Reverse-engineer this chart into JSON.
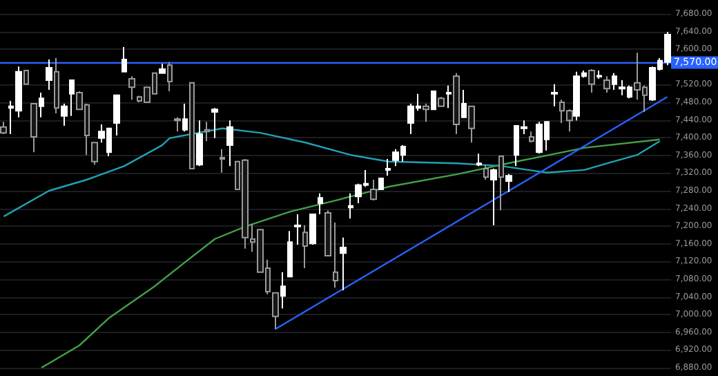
{
  "chart_data": {
    "type": "candlestick",
    "tick_labels": "y",
    "grid": "y",
    "ylim": [
      6880,
      7680
    ],
    "yticks": [
      {
        "value": 6880,
        "label": "6,880.00"
      },
      {
        "value": 6920,
        "label": "6,920.00"
      },
      {
        "value": 6960,
        "label": "6,960.00"
      },
      {
        "value": 7000,
        "label": "7,000.00"
      },
      {
        "value": 7040,
        "label": "7,040.00"
      },
      {
        "value": 7080,
        "label": "7,080.00"
      },
      {
        "value": 7120,
        "label": "7,120.00"
      },
      {
        "value": 7160,
        "label": "7,160.00"
      },
      {
        "value": 7200,
        "label": "7,200.00"
      },
      {
        "value": 7240,
        "label": "7,240.00"
      },
      {
        "value": 7280,
        "label": "7,280.00"
      },
      {
        "value": 7320,
        "label": "7,320.00"
      },
      {
        "value": 7360,
        "label": "7,360.00"
      },
      {
        "value": 7400,
        "label": "7,400.00"
      },
      {
        "value": 7440,
        "label": "7,440.00"
      },
      {
        "value": 7480,
        "label": "7,480.00"
      },
      {
        "value": 7520,
        "label": "7,520.00"
      },
      {
        "value": 7600,
        "label": "7,600.00"
      },
      {
        "value": 7640,
        "label": "7,640.00"
      },
      {
        "value": 7680,
        "label": "7,680.00"
      }
    ],
    "categories": [
      null,
      null,
      null,
      null,
      null,
      null,
      null,
      null,
      null,
      null,
      null,
      null,
      null,
      null,
      null,
      null,
      null,
      null,
      null,
      null,
      null,
      null,
      null,
      null,
      null,
      null,
      null,
      null,
      null,
      null,
      null,
      null,
      null,
      null,
      null,
      null,
      null,
      null,
      null,
      null,
      null,
      null,
      null,
      null,
      null,
      null,
      null,
      null,
      null,
      null,
      null,
      null,
      null,
      null,
      null,
      null,
      null,
      null,
      null,
      null,
      null,
      null,
      null,
      null,
      null,
      null,
      null,
      null,
      null,
      null,
      null,
      null,
      null,
      null,
      null,
      null,
      null,
      null,
      null,
      null,
      null,
      null,
      null,
      null,
      null,
      null,
      null,
      null,
      null
    ],
    "ohlc": [
      [
        7424,
        7436,
        7408,
        7411
      ],
      [
        7467,
        7483,
        7408,
        7471
      ],
      [
        7461,
        7561,
        7446,
        7549
      ],
      [
        7552,
        7552,
        7521,
        7521
      ],
      [
        7477,
        7477,
        7367,
        7402
      ],
      [
        7471,
        7502,
        7446,
        7489
      ],
      [
        7530,
        7577,
        7508,
        7558
      ],
      [
        7549,
        7580,
        7455,
        7467
      ],
      [
        7449,
        7477,
        7427,
        7471
      ],
      [
        7499,
        7530,
        7449,
        7530
      ],
      [
        7502,
        7505,
        7464,
        7464
      ],
      [
        7474,
        7477,
        7361,
        7405
      ],
      [
        7389,
        7389,
        7339,
        7346
      ],
      [
        7399,
        7430,
        7389,
        7414
      ],
      [
        7367,
        7421,
        7358,
        7421
      ],
      [
        7433,
        7496,
        7405,
        7496
      ],
      [
        7549,
        7605,
        7549,
        7577
      ],
      [
        7533,
        7539,
        7486,
        7514
      ],
      [
        7492,
        7495,
        7480,
        7483
      ],
      [
        7514,
        7514,
        7480,
        7480
      ],
      [
        7546,
        7546,
        7499,
        7499
      ],
      [
        7546,
        7567,
        7546,
        7555
      ],
      [
        7564,
        7571,
        7505,
        7527
      ],
      [
        7442,
        7446,
        7414,
        7439
      ],
      [
        7418,
        7477,
        7414,
        7442
      ],
      [
        7524,
        7524,
        7330,
        7330
      ],
      [
        7339,
        7439,
        7336,
        7408
      ],
      [
        7418,
        7436,
        7392,
        7414
      ],
      [
        7458,
        7467,
        7399,
        7464
      ],
      [
        7355,
        7374,
        7321,
        7352
      ],
      [
        7383,
        7439,
        7336,
        7424
      ],
      [
        7346,
        7346,
        7283,
        7283
      ],
      [
        7349,
        7352,
        7149,
        7174
      ],
      [
        7171,
        7205,
        7142,
        7164
      ],
      [
        7192,
        7192,
        7096,
        7096
      ],
      [
        7105,
        7124,
        7046,
        7052
      ],
      [
        7049,
        7049,
        6967,
        6996
      ],
      [
        7042,
        7096,
        7014,
        7064
      ],
      [
        7086,
        7189,
        7086,
        7164
      ],
      [
        7199,
        7227,
        7158,
        7202
      ],
      [
        7186,
        7202,
        7105,
        7155
      ],
      [
        7161,
        7227,
        7158,
        7227
      ],
      [
        7252,
        7274,
        7227,
        7264
      ],
      [
        7230,
        7236,
        7133,
        7133
      ],
      [
        7096,
        7208,
        7061,
        7077
      ],
      [
        7139,
        7174,
        7055,
        7152
      ],
      [
        7242,
        7274,
        7217,
        7246
      ],
      [
        7267,
        7296,
        7252,
        7293
      ],
      [
        7293,
        7327,
        7289,
        7296
      ],
      [
        7283,
        7305,
        7258,
        7261
      ],
      [
        7283,
        7308,
        7283,
        7308
      ],
      [
        7327,
        7352,
        7314,
        7330
      ],
      [
        7349,
        7374,
        7336,
        7367
      ],
      [
        7361,
        7383,
        7346,
        7380
      ],
      [
        7433,
        7477,
        7408,
        7471
      ],
      [
        7467,
        7499,
        7461,
        7471
      ],
      [
        7471,
        7477,
        7436,
        7464
      ],
      [
        7464,
        7505,
        7464,
        7505
      ],
      [
        7489,
        7492,
        7471,
        7471
      ],
      [
        7499,
        7518,
        7467,
        7502
      ],
      [
        7539,
        7546,
        7408,
        7430
      ],
      [
        7446,
        7508,
        7446,
        7477
      ],
      [
        7471,
        7471,
        7389,
        7421
      ],
      [
        7339,
        7364,
        7336,
        7342
      ],
      [
        7330,
        7339,
        7305,
        7311
      ],
      [
        7305,
        7330,
        7202,
        7327
      ],
      [
        7358,
        7358,
        7236,
        7311
      ],
      [
        7302,
        7318,
        7277,
        7314
      ],
      [
        7361,
        7427,
        7336,
        7427
      ],
      [
        7421,
        7439,
        7408,
        7424
      ],
      [
        7402,
        7414,
        7389,
        7392
      ],
      [
        7367,
        7436,
        7364,
        7430
      ],
      [
        7396,
        7436,
        7371,
        7436
      ],
      [
        7499,
        7521,
        7471,
        7502
      ],
      [
        7480,
        7486,
        7433,
        7461
      ],
      [
        7461,
        7464,
        7414,
        7439
      ],
      [
        7449,
        7549,
        7439,
        7539
      ],
      [
        7539,
        7552,
        7536,
        7546
      ],
      [
        7552,
        7555,
        7502,
        7521
      ],
      [
        7538,
        7552,
        7533,
        7540
      ],
      [
        7530,
        7539,
        7502,
        7511
      ],
      [
        7521,
        7546,
        7508,
        7539
      ],
      [
        7511,
        7530,
        7496,
        7514
      ],
      [
        7492,
        7518,
        7489,
        7514
      ],
      [
        7524,
        7592,
        7486,
        7508
      ],
      [
        7514,
        7518,
        7458,
        7496
      ],
      [
        7486,
        7561,
        7483,
        7558
      ],
      [
        7555,
        7580,
        7552,
        7574
      ],
      [
        7571,
        7639,
        7564,
        7633
      ]
    ],
    "series": [
      {
        "type": "line",
        "color": "#1fa2b3",
        "values": [
          7222,
          null,
          null,
          null,
          null,
          null,
          7280,
          null,
          null,
          null,
          null,
          7305,
          null,
          null,
          null,
          null,
          7336,
          null,
          null,
          null,
          null,
          7383,
          7399,
          null,
          null,
          null,
          null,
          null,
          null,
          7421,
          null,
          null,
          null,
          null,
          7411,
          null,
          null,
          null,
          null,
          null,
          7389,
          null,
          null,
          null,
          null,
          null,
          7361,
          null,
          null,
          null,
          null,
          7346,
          null,
          null,
          null,
          null,
          null,
          null,
          null,
          null,
          7342,
          null,
          null,
          null,
          null,
          null,
          7336,
          null,
          null,
          null,
          null,
          null,
          7321,
          null,
          null,
          null,
          null,
          7327,
          null,
          null,
          7342,
          null,
          null,
          null,
          7361,
          null,
          null,
          7392,
          null
        ]
      },
      {
        "type": "line",
        "color": "#43a047",
        "values": [
          null,
          null,
          null,
          null,
          null,
          6880,
          null,
          null,
          null,
          null,
          6930,
          null,
          null,
          null,
          6993,
          null,
          null,
          null,
          null,
          null,
          7064,
          null,
          null,
          null,
          7118,
          null,
          null,
          null,
          7171,
          null,
          null,
          null,
          7199,
          null,
          null,
          null,
          null,
          null,
          7233,
          null,
          null,
          null,
          null,
          null,
          7258,
          null,
          null,
          null,
          null,
          null,
          null,
          7289,
          null,
          null,
          null,
          null,
          null,
          null,
          null,
          null,
          7317,
          null,
          null,
          null,
          null,
          null,
          null,
          null,
          7346,
          null,
          null,
          null,
          null,
          null,
          null,
          null,
          null,
          7377,
          null,
          null,
          null,
          null,
          null,
          null,
          null,
          null,
          null,
          7396,
          null
        ]
      },
      {
        "type": "line",
        "color": "#2962ff",
        "values": [
          null,
          null,
          null,
          null,
          null,
          null,
          null,
          null,
          null,
          null,
          null,
          null,
          null,
          null,
          null,
          null,
          null,
          null,
          null,
          null,
          null,
          null,
          null,
          null,
          null,
          null,
          null,
          null,
          null,
          null,
          null,
          null,
          null,
          null,
          null,
          null,
          6967,
          null,
          null,
          null,
          null,
          null,
          null,
          null,
          null,
          null,
          null,
          null,
          null,
          null,
          null,
          null,
          null,
          null,
          null,
          null,
          null,
          null,
          null,
          null,
          null,
          null,
          null,
          null,
          null,
          null,
          null,
          null,
          null,
          null,
          null,
          null,
          null,
          null,
          null,
          null,
          null,
          null,
          null,
          null,
          null,
          null,
          null,
          null,
          null,
          null,
          null,
          null,
          7492
        ]
      }
    ],
    "ref_lines": [
      {
        "axis": "y",
        "value": 7570,
        "label": "7,570.00",
        "color": "#2962ff"
      }
    ]
  }
}
